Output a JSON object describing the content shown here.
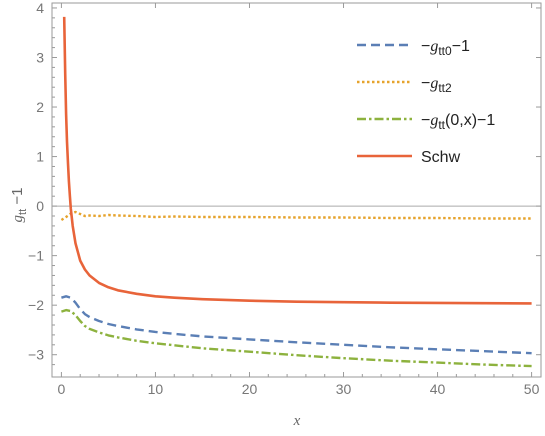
{
  "chart_data": {
    "type": "line",
    "title": "",
    "xlabel": "x",
    "ylabel": "g",
    "ylabel_sub": "tt",
    "ylabel_suffix": " −1",
    "xlim": [
      -1,
      51
    ],
    "ylim": [
      -3.45,
      4.1
    ],
    "xticks": [
      0,
      10,
      20,
      30,
      40,
      50
    ],
    "xtick_labels": [
      "0",
      "10",
      "20",
      "30",
      "40",
      "50"
    ],
    "yticks": [
      -3,
      -2,
      -1,
      0,
      1,
      2,
      3,
      4
    ],
    "ytick_labels": [
      "−3",
      "−2",
      "−1",
      "0",
      "1",
      "2",
      "3",
      "4"
    ],
    "zero_line": true,
    "grid": false,
    "legend_position": "top-right",
    "series": [
      {
        "name": "-gtt0-1",
        "legend_label": {
          "prefix": "−",
          "symbol": "g",
          "sub": "tt0",
          "suffix": "−1"
        },
        "color": "#5b7fb5",
        "dash": "dashed",
        "x": [
          0,
          0.5,
          1,
          1.5,
          2,
          2.5,
          3,
          4,
          5,
          6,
          8,
          10,
          12,
          15,
          20,
          25,
          30,
          35,
          40,
          45,
          50
        ],
        "y": [
          -1.85,
          -1.82,
          -1.85,
          -1.95,
          -2.08,
          -2.18,
          -2.24,
          -2.32,
          -2.38,
          -2.42,
          -2.49,
          -2.54,
          -2.58,
          -2.63,
          -2.69,
          -2.75,
          -2.8,
          -2.85,
          -2.89,
          -2.93,
          -2.97
        ]
      },
      {
        "name": "-gtt2",
        "legend_label": {
          "prefix": "−",
          "symbol": "g",
          "sub": "tt2",
          "suffix": ""
        },
        "color": "#e6a32c",
        "dash": "dotted",
        "x": [
          0,
          0.5,
          1,
          1.5,
          2,
          2.5,
          3,
          4,
          5,
          6,
          8,
          10,
          12,
          15,
          20,
          25,
          30,
          35,
          40,
          45,
          50
        ],
        "y": [
          -0.28,
          -0.22,
          -0.15,
          -0.12,
          -0.16,
          -0.2,
          -0.19,
          -0.2,
          -0.18,
          -0.19,
          -0.2,
          -0.22,
          -0.21,
          -0.22,
          -0.22,
          -0.23,
          -0.23,
          -0.24,
          -0.24,
          -0.25,
          -0.25
        ]
      },
      {
        "name": "-gtt(0,x)-1",
        "legend_label": {
          "prefix": "−",
          "symbol": "g",
          "sub": "tt",
          "suffix": "(0,x)−1"
        },
        "color": "#8db23e",
        "dash": "dashdot",
        "x": [
          0,
          0.5,
          1,
          1.5,
          2,
          2.5,
          3,
          4,
          5,
          6,
          8,
          10,
          12,
          15,
          20,
          25,
          30,
          35,
          40,
          45,
          50
        ],
        "y": [
          -2.13,
          -2.1,
          -2.12,
          -2.2,
          -2.32,
          -2.42,
          -2.48,
          -2.55,
          -2.61,
          -2.65,
          -2.72,
          -2.77,
          -2.81,
          -2.87,
          -2.94,
          -3.01,
          -3.07,
          -3.12,
          -3.16,
          -3.2,
          -3.23
        ]
      },
      {
        "name": "Schw",
        "legend_label": {
          "prefix": "",
          "symbol": "",
          "sub": "",
          "suffix": "Schw"
        },
        "color": "#e8643a",
        "dash": "solid",
        "x": [
          0.3,
          0.4,
          0.5,
          0.6,
          0.7,
          0.8,
          0.9,
          1,
          1.2,
          1.5,
          2,
          2.5,
          3,
          4,
          5,
          6,
          8,
          10,
          12,
          15,
          20,
          25,
          30,
          35,
          40,
          45,
          50
        ],
        "y": [
          3.82,
          2.68,
          1.86,
          1.3,
          0.86,
          0.5,
          0.2,
          -0.05,
          -0.4,
          -0.75,
          -1.1,
          -1.28,
          -1.4,
          -1.55,
          -1.64,
          -1.7,
          -1.77,
          -1.82,
          -1.85,
          -1.88,
          -1.91,
          -1.93,
          -1.94,
          -1.95,
          -1.955,
          -1.96,
          -1.965
        ]
      }
    ]
  }
}
